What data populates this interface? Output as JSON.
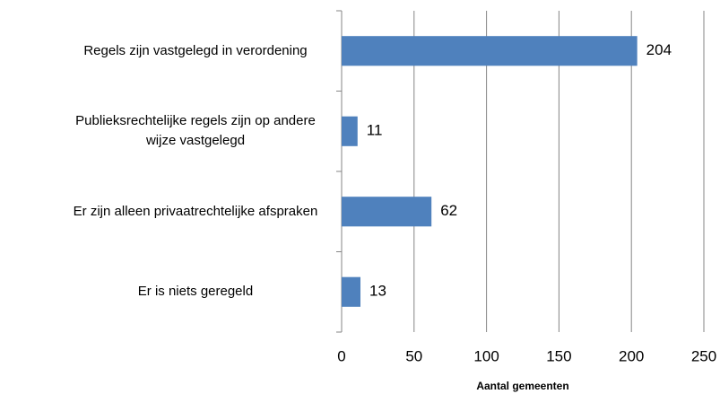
{
  "chart_data": {
    "type": "bar",
    "orientation": "horizontal",
    "categories": [
      "Regels zijn vastgelegd in verordening",
      "Publieksrechtelijke regels zijn op andere wijze vastgelegd",
      "Er zijn alleen privaatrechtelijke afspraken",
      "Er is niets geregeld"
    ],
    "values": [
      204,
      11,
      62,
      13
    ],
    "color": "#4f81bd",
    "xlabel": "Aantal gemeenten",
    "xlim": [
      0,
      250
    ],
    "xticks": [
      0,
      50,
      100,
      150,
      200,
      250
    ],
    "grid": true
  }
}
